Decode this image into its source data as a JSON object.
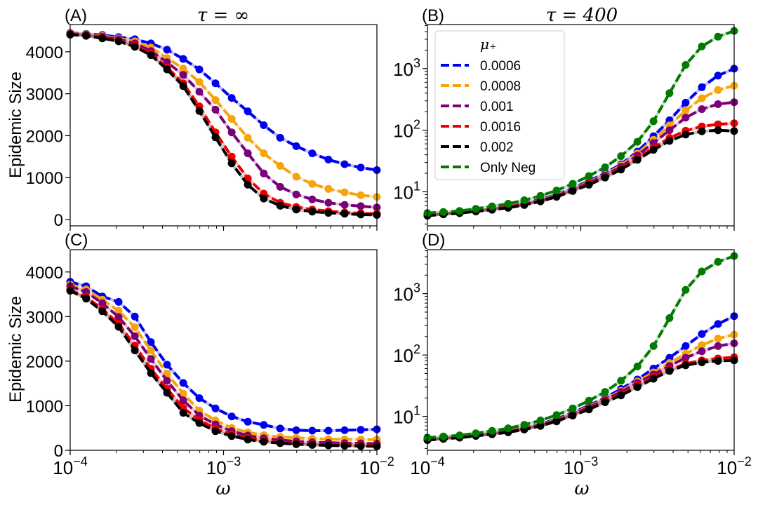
{
  "figure": {
    "panel_labels": [
      "(A)",
      "(B)",
      "(C)",
      "(D)"
    ],
    "titles": [
      "τ = ∞",
      "τ = 400",
      "",
      ""
    ],
    "ylabel": "Epidemic Size",
    "xlabel": "ω",
    "legend": {
      "title": "μ₊",
      "entries": [
        "0.0006",
        "0.0008",
        "0.001",
        "0.0016",
        "0.002",
        "Only Neg"
      ]
    },
    "colors": {
      "0.0006": "#0000ee",
      "0.0008": "#f5a40c",
      "0.001": "#7a007a",
      "0.0016": "#ee0000",
      "0.002": "#000000",
      "Only Neg": "#007a00"
    }
  },
  "chart_data": [
    {
      "panel": "A",
      "type": "line",
      "title": "τ = ∞",
      "xlabel": "",
      "ylabel": "Epidemic Size",
      "xscale": "log",
      "xlim": [
        0.0001,
        0.01
      ],
      "yscale": "linear",
      "ylim": [
        -150,
        4650
      ],
      "yticks": [
        0,
        1000,
        2000,
        3000,
        4000
      ],
      "x": [
        0.0001,
        0.000127,
        0.000162,
        0.000207,
        0.000264,
        0.000336,
        0.000428,
        0.000546,
        0.000695,
        0.000886,
        0.00113,
        0.00144,
        0.00183,
        0.00234,
        0.00298,
        0.00379,
        0.00483,
        0.00616,
        0.00785,
        0.01
      ],
      "series": [
        {
          "name": "0.0006",
          "values": [
            4450,
            4430,
            4400,
            4350,
            4300,
            4200,
            4050,
            3830,
            3580,
            3250,
            2900,
            2580,
            2250,
            1950,
            1750,
            1580,
            1430,
            1320,
            1240,
            1180
          ]
        },
        {
          "name": "0.0008",
          "values": [
            4440,
            4420,
            4380,
            4320,
            4250,
            4100,
            3850,
            3600,
            3280,
            2850,
            2400,
            1950,
            1580,
            1280,
            1020,
            850,
            730,
            650,
            580,
            540
          ]
        },
        {
          "name": "0.001",
          "values": [
            4430,
            4410,
            4360,
            4300,
            4200,
            4020,
            3750,
            3450,
            3050,
            2620,
            2080,
            1580,
            1100,
            780,
            600,
            480,
            400,
            350,
            320,
            290
          ]
        },
        {
          "name": "0.0016",
          "values": [
            4420,
            4390,
            4340,
            4270,
            4150,
            3960,
            3630,
            3250,
            2700,
            2080,
            1500,
            980,
            620,
            400,
            300,
            240,
            200,
            170,
            150,
            140
          ]
        },
        {
          "name": "0.002",
          "values": [
            4410,
            4380,
            4320,
            4250,
            4120,
            3920,
            3580,
            3180,
            2590,
            1960,
            1340,
            830,
            500,
            330,
            240,
            190,
            160,
            140,
            120,
            110
          ]
        }
      ]
    },
    {
      "panel": "B",
      "type": "line",
      "title": "τ = 400",
      "xlabel": "",
      "ylabel": "",
      "xscale": "log",
      "xlim": [
        0.0001,
        0.01
      ],
      "yscale": "log",
      "ylim": [
        2.8,
        5200
      ],
      "x": [
        0.0001,
        0.000127,
        0.000162,
        0.000207,
        0.000264,
        0.000336,
        0.000428,
        0.000546,
        0.000695,
        0.000886,
        0.00113,
        0.00144,
        0.00183,
        0.00234,
        0.00298,
        0.00379,
        0.00483,
        0.00616,
        0.00785,
        0.01
      ],
      "legend": "top-left",
      "series": [
        {
          "name": "0.0006",
          "values": [
            4.2,
            4.4,
            4.6,
            4.9,
            5.3,
            5.8,
            6.5,
            7.5,
            9,
            11.5,
            15,
            20,
            28,
            45,
            80,
            145,
            280,
            500,
            770,
            1000
          ]
        },
        {
          "name": "0.0008",
          "values": [
            4.2,
            4.4,
            4.6,
            4.9,
            5.3,
            5.8,
            6.4,
            7.3,
            8.8,
            11,
            14.5,
            19,
            27,
            42,
            70,
            120,
            210,
            330,
            450,
            530
          ]
        },
        {
          "name": "0.001",
          "values": [
            4.2,
            4.4,
            4.6,
            4.9,
            5.3,
            5.7,
            6.3,
            7.2,
            8.6,
            10.8,
            14,
            18.5,
            25.5,
            39,
            62,
            100,
            160,
            220,
            265,
            285
          ]
        },
        {
          "name": "0.0016",
          "values": [
            4.2,
            4.4,
            4.6,
            4.8,
            5.2,
            5.6,
            6.2,
            7.1,
            8.4,
            10.5,
            13.5,
            17.5,
            24,
            35,
            52,
            75,
            98,
            115,
            125,
            130
          ]
        },
        {
          "name": "0.002",
          "values": [
            4.1,
            4.3,
            4.5,
            4.8,
            5.1,
            5.5,
            6.1,
            7,
            8.3,
            10.3,
            13,
            17,
            23,
            33,
            48,
            67,
            85,
            96,
            100,
            97
          ]
        },
        {
          "name": "Only Neg",
          "values": [
            4.5,
            4.7,
            4.9,
            5.3,
            5.8,
            6.4,
            7.3,
            8.6,
            10.5,
            13.5,
            18,
            25,
            38,
            65,
            140,
            400,
            1150,
            2300,
            3300,
            4100
          ]
        }
      ]
    },
    {
      "panel": "C",
      "type": "line",
      "title": "",
      "xlabel": "ω",
      "ylabel": "Epidemic Size",
      "xscale": "log",
      "xlim": [
        0.0001,
        0.01
      ],
      "yscale": "linear",
      "ylim": [
        0,
        4500
      ],
      "yticks": [
        0,
        1000,
        2000,
        3000,
        4000
      ],
      "x": [
        0.0001,
        0.000127,
        0.000162,
        0.000207,
        0.000264,
        0.000336,
        0.000428,
        0.000546,
        0.000695,
        0.000886,
        0.00113,
        0.00144,
        0.00183,
        0.00234,
        0.00298,
        0.00379,
        0.00483,
        0.00616,
        0.00785,
        0.01
      ],
      "series": [
        {
          "name": "0.0006",
          "values": [
            3780,
            3680,
            3450,
            3330,
            3000,
            2430,
            1920,
            1510,
            1170,
            940,
            760,
            640,
            570,
            490,
            450,
            440,
            440,
            450,
            460,
            470
          ]
        },
        {
          "name": "0.0008",
          "values": [
            3720,
            3610,
            3380,
            3130,
            2760,
            2240,
            1720,
            1270,
            890,
            670,
            500,
            400,
            340,
            300,
            280,
            260,
            250,
            245,
            240,
            240
          ]
        },
        {
          "name": "0.001",
          "values": [
            3680,
            3550,
            3300,
            2990,
            2560,
            2050,
            1560,
            1120,
            780,
            580,
            430,
            330,
            270,
            230,
            200,
            180,
            170,
            160,
            155,
            150
          ]
        },
        {
          "name": "0.0016",
          "values": [
            3600,
            3440,
            3170,
            2840,
            2350,
            1830,
            1380,
            950,
            680,
            490,
            360,
            270,
            220,
            180,
            150,
            140,
            130,
            120,
            115,
            110
          ]
        },
        {
          "name": "0.002",
          "values": [
            3580,
            3400,
            3120,
            2770,
            2240,
            1730,
            1290,
            840,
            610,
            430,
            320,
            240,
            190,
            160,
            135,
            120,
            110,
            100,
            95,
            90
          ]
        }
      ]
    },
    {
      "panel": "D",
      "type": "line",
      "title": "",
      "xlabel": "ω",
      "ylabel": "",
      "xscale": "log",
      "xlim": [
        0.0001,
        0.01
      ],
      "yscale": "log",
      "ylim": [
        2.8,
        5200
      ],
      "x": [
        0.0001,
        0.000127,
        0.000162,
        0.000207,
        0.000264,
        0.000336,
        0.000428,
        0.000546,
        0.000695,
        0.000886,
        0.00113,
        0.00144,
        0.00183,
        0.00234,
        0.00298,
        0.00379,
        0.00483,
        0.00616,
        0.00785,
        0.01
      ],
      "series": [
        {
          "name": "0.0006",
          "values": [
            4.2,
            4.4,
            4.6,
            4.9,
            5.3,
            5.8,
            6.5,
            7.5,
            9,
            11.5,
            15,
            20,
            28,
            40,
            60,
            90,
            140,
            220,
            320,
            430
          ]
        },
        {
          "name": "0.0008",
          "values": [
            4.2,
            4.4,
            4.6,
            4.9,
            5.3,
            5.8,
            6.4,
            7.3,
            8.8,
            11,
            14.5,
            19,
            26,
            37,
            52,
            74,
            105,
            145,
            185,
            215
          ]
        },
        {
          "name": "0.001",
          "values": [
            4.2,
            4.4,
            4.6,
            4.9,
            5.3,
            5.7,
            6.3,
            7.2,
            8.6,
            10.8,
            14,
            18.5,
            25,
            35,
            48,
            66,
            90,
            115,
            140,
            155
          ]
        },
        {
          "name": "0.0016",
          "values": [
            4.2,
            4.4,
            4.6,
            4.8,
            5.2,
            5.6,
            6.2,
            7.1,
            8.4,
            10.5,
            13.5,
            17.5,
            23,
            32,
            44,
            58,
            72,
            82,
            88,
            92
          ]
        },
        {
          "name": "0.002",
          "values": [
            4.1,
            4.3,
            4.5,
            4.8,
            5.1,
            5.5,
            6.1,
            7,
            8.3,
            10.3,
            13,
            17,
            22,
            30,
            41,
            55,
            68,
            76,
            80,
            82
          ]
        },
        {
          "name": "Only Neg",
          "values": [
            4.5,
            4.7,
            4.9,
            5.3,
            5.8,
            6.4,
            7.3,
            8.6,
            10.5,
            13.5,
            18,
            25,
            38,
            65,
            140,
            400,
            1150,
            2300,
            3300,
            4100
          ]
        }
      ]
    }
  ]
}
